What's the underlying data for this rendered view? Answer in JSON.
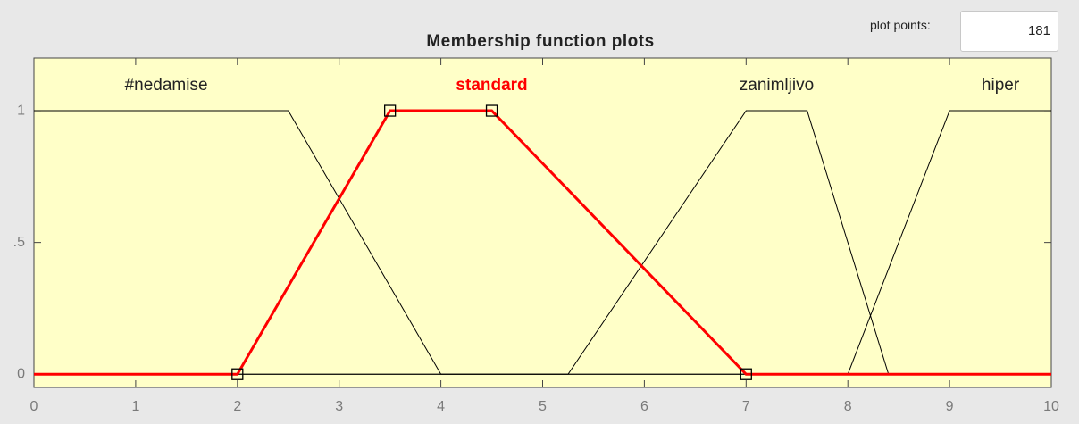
{
  "chart_data": {
    "type": "line",
    "title": "Membership function plots",
    "xlim": [
      0,
      10
    ],
    "xticks": [
      0,
      1,
      2,
      3,
      4,
      5,
      6,
      7,
      8,
      9,
      10
    ],
    "ylim": [
      -0.05,
      1.2
    ],
    "yticks": [
      0,
      {
        "value": 0.5,
        "label": ".5"
      },
      1
    ],
    "series": [
      {
        "name": "#nedamise",
        "color": "#000000",
        "line_width": 1,
        "markers": false,
        "x": [
          0,
          2.5,
          4,
          10
        ],
        "values": [
          1,
          1,
          0,
          0
        ]
      },
      {
        "name": "standard",
        "color": "#ff0000",
        "line_width": 3,
        "markers": true,
        "x": [
          0,
          2,
          3.5,
          4.5,
          7,
          10
        ],
        "values": [
          0,
          0,
          1,
          1,
          0,
          0
        ]
      },
      {
        "name": "zanimljivo",
        "color": "#000000",
        "line_width": 1,
        "markers": false,
        "x": [
          0,
          5.25,
          7,
          7.6,
          8.4,
          10
        ],
        "values": [
          0,
          0,
          1,
          1,
          0,
          0
        ]
      },
      {
        "name": "hiper",
        "color": "#000000",
        "line_width": 1,
        "markers": false,
        "x": [
          0,
          8,
          9,
          10
        ],
        "values": [
          0,
          0,
          1,
          1
        ]
      }
    ],
    "label_x": [
      1.3,
      4.5,
      7.3,
      9.5
    ]
  },
  "controls": {
    "plot_points_label": "plot points:",
    "plot_points_value": 181
  }
}
